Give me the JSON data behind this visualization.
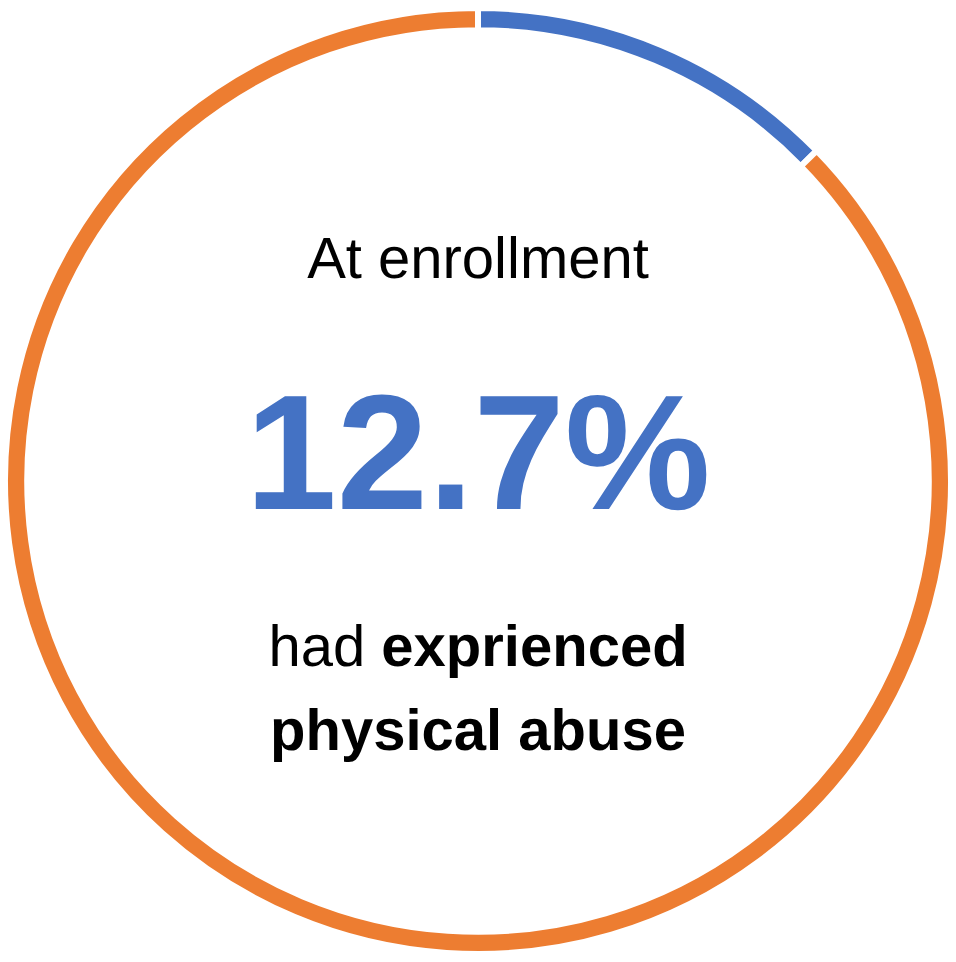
{
  "chart_data": {
    "type": "donut",
    "categories": [
      null,
      null
    ],
    "values": [
      12.7,
      87.3
    ],
    "colors": [
      "#4472c4",
      "#ed7d31"
    ],
    "value_labels": [
      "12.7%",
      null
    ],
    "annotations": [
      "At enrollment",
      "had",
      "exprienced physical abuse"
    ],
    "legend": false
  }
}
